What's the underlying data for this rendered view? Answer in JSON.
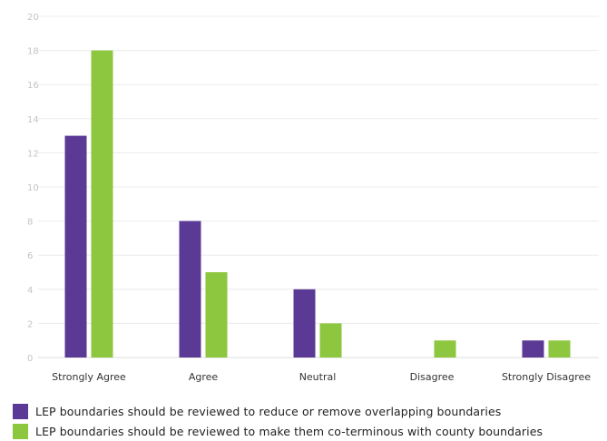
{
  "chart_data": {
    "type": "bar",
    "categories": [
      "Strongly Agree",
      "Agree",
      "Neutral",
      "Disagree",
      "Strongly Disagree"
    ],
    "series": [
      {
        "name": "LEP boundaries should be reviewed to reduce or remove overlapping boundaries",
        "values": [
          13,
          8,
          4,
          0,
          1
        ],
        "color": "#5b3a96"
      },
      {
        "name": "LEP boundaries should be reviewed to make them co-terminous with county boundaries",
        "values": [
          18,
          5,
          2,
          1,
          1
        ],
        "color": "#8dc63f"
      }
    ],
    "ylim": [
      0,
      20
    ],
    "yticks": [
      "0",
      "2",
      "4",
      "6",
      "8",
      "10",
      "12",
      "14",
      "16",
      "18",
      "20"
    ],
    "grid": true,
    "legend_position": "bottom-left",
    "title": "",
    "xlabel": "",
    "ylabel": ""
  }
}
